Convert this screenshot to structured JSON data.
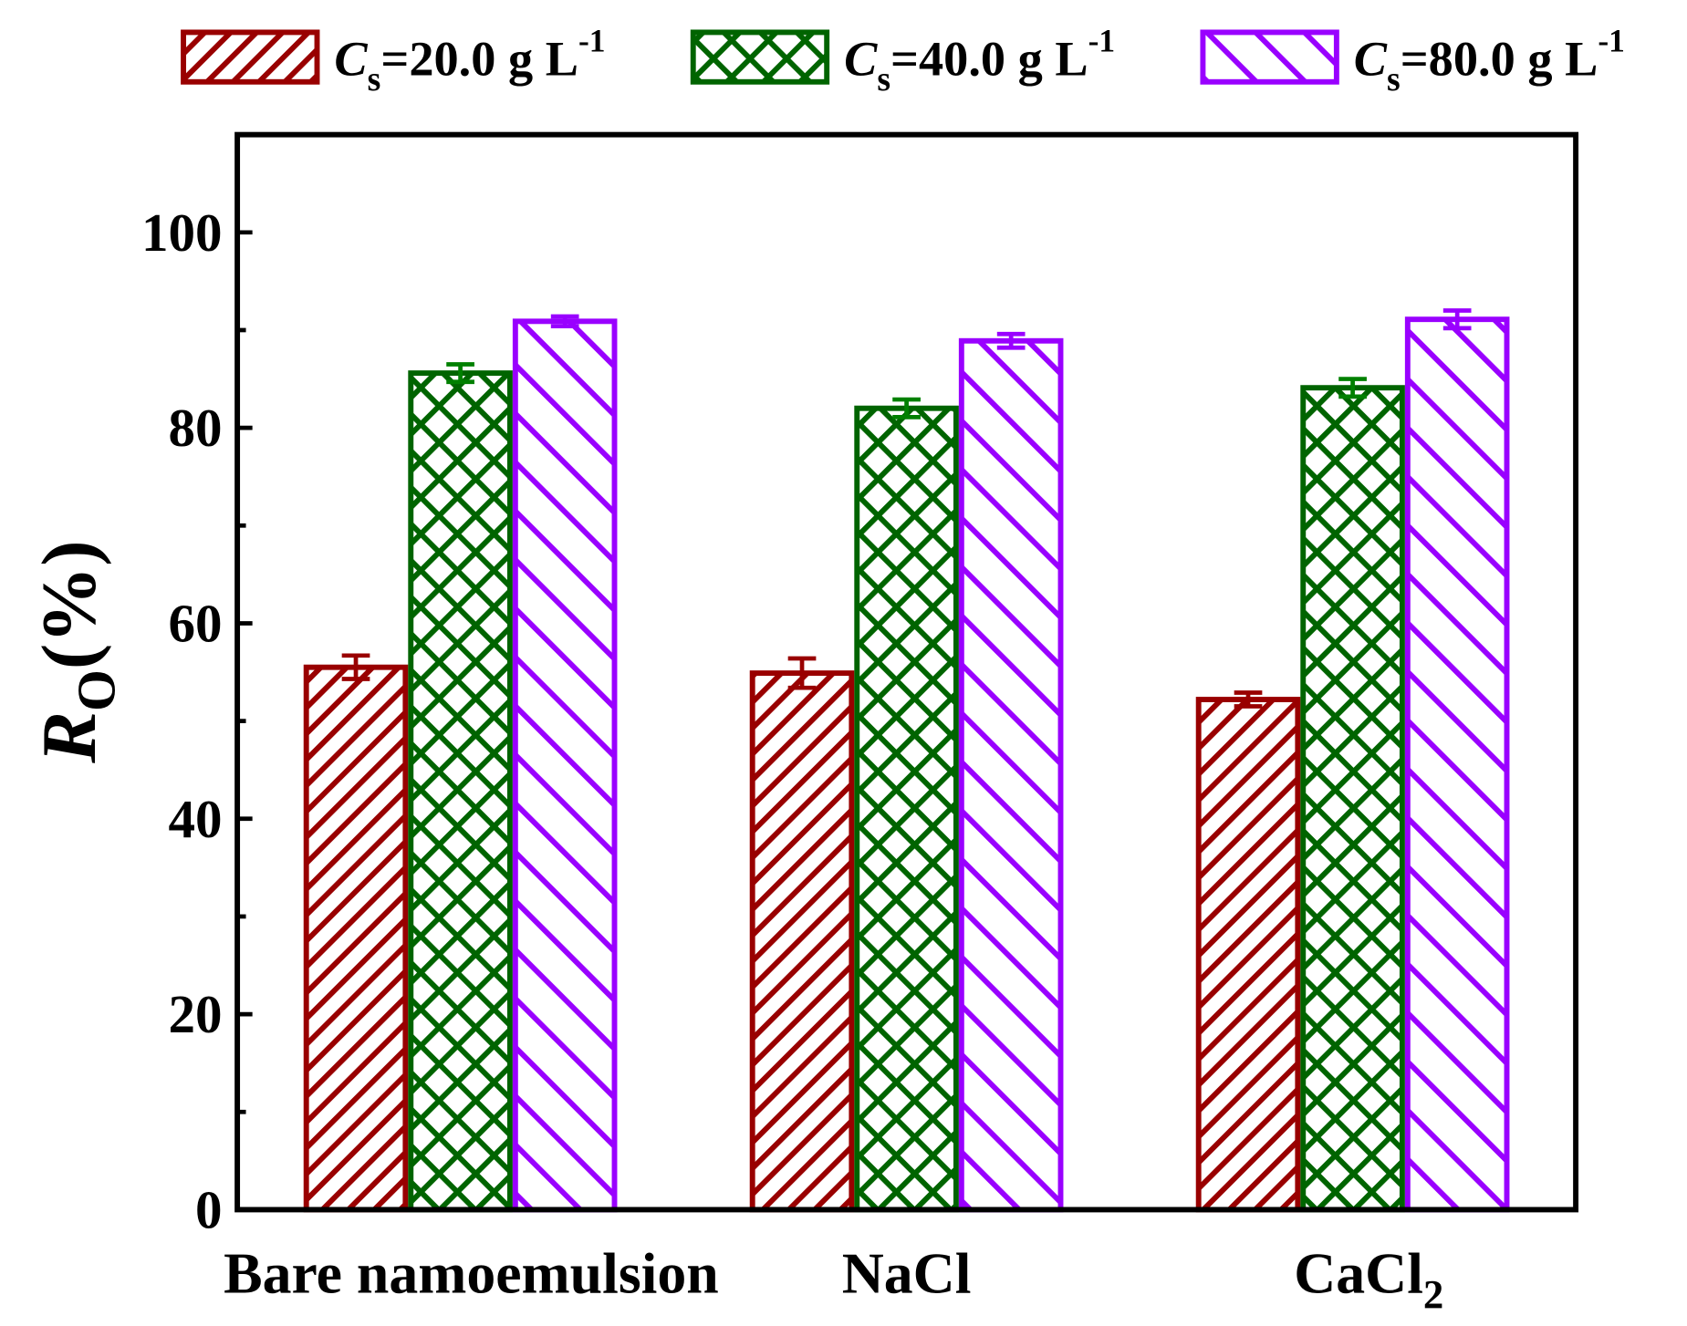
{
  "chart_data": {
    "type": "bar",
    "title": "",
    "xlabel": "",
    "ylabel": {
      "main": "R",
      "sub": "O",
      "rest": "(%)"
    },
    "categories": [
      {
        "label": "Bare namoemulsion",
        "sub": ""
      },
      {
        "label": "NaCl",
        "sub": ""
      },
      {
        "label": "CaCl",
        "sub": "2"
      }
    ],
    "ylim": [
      0,
      110
    ],
    "yticks": [
      0,
      20,
      40,
      60,
      80,
      100
    ],
    "yticks_minor": [
      10,
      30,
      50,
      70,
      90
    ],
    "grid": false,
    "legend_position": "top",
    "series": [
      {
        "name": {
          "c": "C",
          "sub": "s",
          "text": "=20.0 g L",
          "sup": "-1"
        },
        "color": "#990000",
        "error_color": "#990000",
        "pattern": "diagonal-forward",
        "values": [
          55.5,
          54.9,
          52.2
        ],
        "errors": [
          1.2,
          1.5,
          0.7
        ]
      },
      {
        "name": {
          "c": "C",
          "sub": "s",
          "text": "=40.0 g L",
          "sup": "-1"
        },
        "color": "#006400",
        "error_color": "#008000",
        "pattern": "crosshatch",
        "values": [
          85.6,
          82.0,
          84.1
        ],
        "errors": [
          0.9,
          0.9,
          0.9
        ]
      },
      {
        "name": {
          "c": "C",
          "sub": "s",
          "text": "=80.0 g L",
          "sup": "-1"
        },
        "color": "#9900FF",
        "error_color": "#9900FF",
        "pattern": "diagonal-back",
        "values": [
          90.9,
          88.9,
          91.1
        ],
        "errors": [
          0.5,
          0.7,
          0.9
        ]
      }
    ]
  }
}
